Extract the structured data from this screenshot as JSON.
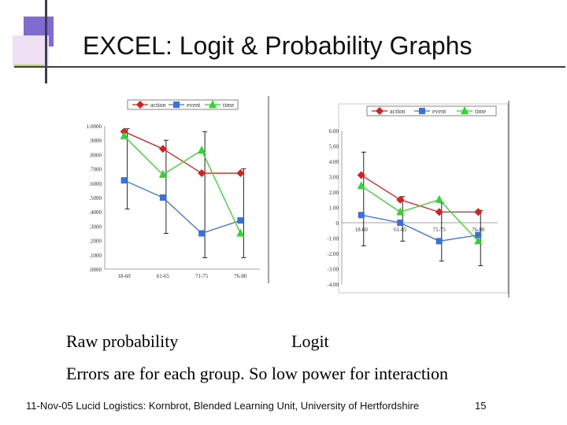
{
  "slide": {
    "title": "EXCEL:  Logit & Probability Graphs",
    "captions": {
      "raw": "Raw probability",
      "logit": "Logit",
      "errors": "Errors are for each group. So low power for interaction"
    },
    "footer": {
      "date": "11-Nov-05",
      "source": "Lucid Logistics: Kornbrot, Blended Learning Unit, University of Hertfordshire",
      "page": "15"
    }
  },
  "chart_data": [
    {
      "type": "line",
      "categories": [
        "18-60",
        "61-65",
        "71-75",
        "76-80"
      ],
      "ylim": [
        0,
        1
      ],
      "ytick_labels": [
        "1.0000",
        ".9000",
        ".8000",
        ".7000",
        ".6000",
        ".5000",
        ".4000",
        ".3000",
        ".2000",
        ".1000",
        ".0000"
      ],
      "series": [
        {
          "name": "action",
          "color": "#d42020",
          "marker": "diamond",
          "values": [
            0.96,
            0.84,
            0.67,
            0.67
          ]
        },
        {
          "name": "event",
          "color": "#3a6fe0",
          "marker": "square",
          "values": [
            0.62,
            0.5,
            0.25,
            0.34
          ]
        },
        {
          "name": "time",
          "color": "#2fd62f",
          "marker": "triangle",
          "values": [
            0.93,
            0.66,
            0.83,
            0.25
          ]
        }
      ],
      "error_ranges": [
        [
          0.42,
          0.98
        ],
        [
          0.25,
          0.9
        ],
        [
          0.08,
          0.96
        ],
        [
          0.08,
          0.7
        ]
      ]
    },
    {
      "type": "line",
      "categories": [
        "18-60",
        "61-65",
        "71-75",
        "76-80"
      ],
      "ylim": [
        -4,
        6
      ],
      "ytick_labels": [
        "6.00",
        "5.00",
        "4.00",
        "3.00",
        "2.00",
        "1.00",
        "0",
        "-1.00",
        "-2.00",
        "-3.00",
        "-4.00"
      ],
      "series": [
        {
          "name": "action",
          "color": "#d42020",
          "marker": "diamond",
          "values": [
            3.1,
            1.5,
            0.7,
            0.7
          ]
        },
        {
          "name": "event",
          "color": "#3a6fe0",
          "marker": "square",
          "values": [
            0.5,
            0.0,
            -1.2,
            -0.8
          ]
        },
        {
          "name": "time",
          "color": "#2fd62f",
          "marker": "triangle",
          "values": [
            2.4,
            0.7,
            1.5,
            -1.2
          ]
        }
      ],
      "error_ranges": [
        [
          -1.5,
          4.6
        ],
        [
          -1.2,
          1.7
        ],
        [
          -2.5,
          1.3
        ],
        [
          -2.8,
          0.8
        ]
      ]
    }
  ]
}
